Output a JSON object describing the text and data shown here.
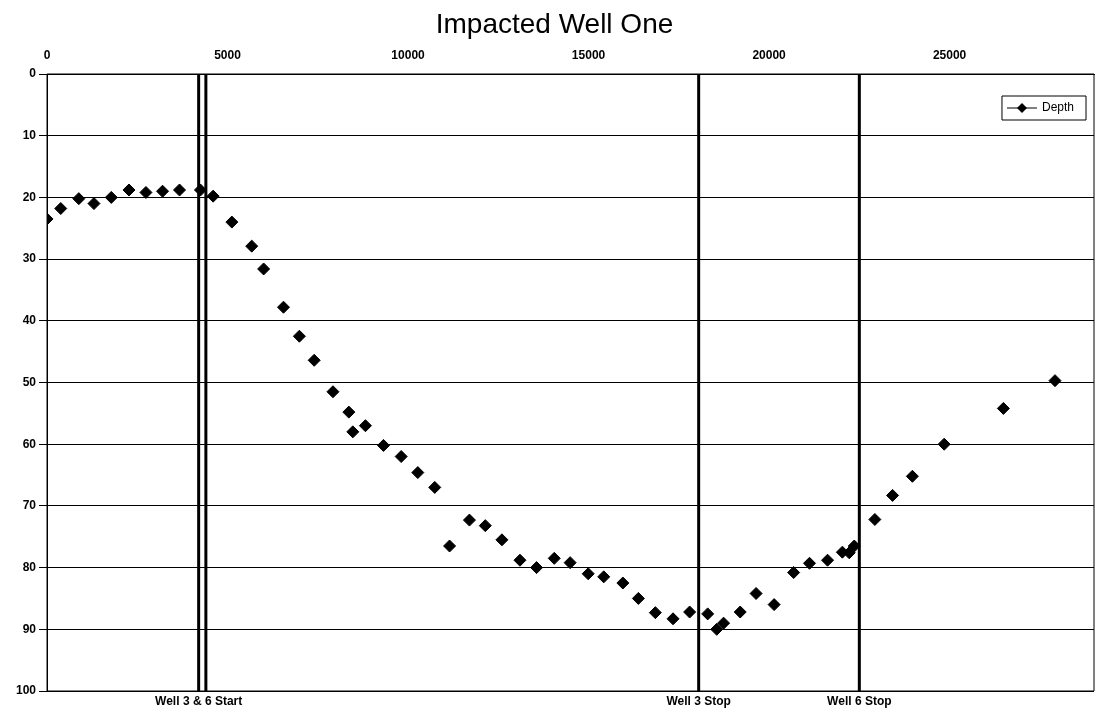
{
  "chart_data": {
    "type": "scatter",
    "title": "Impacted Well One",
    "legend": "top right",
    "marker": "diamond",
    "grid": "y",
    "xlim": [
      0,
      29000
    ],
    "xticks": [
      0,
      5000,
      10000,
      15000,
      20000,
      25000
    ],
    "ylim": [
      100,
      0
    ],
    "yticks": [
      0,
      10,
      20,
      30,
      40,
      50,
      60,
      70,
      80,
      90,
      100
    ],
    "series": [
      {
        "name": "Depth",
        "color": "#000000",
        "x": [
          0,
          380,
          880,
          1300,
          1780,
          2270,
          2740,
          3200,
          3670,
          4250,
          4600,
          5120,
          5670,
          6000,
          6550,
          6990,
          7400,
          7920,
          8360,
          8470,
          8820,
          9320,
          9810,
          10270,
          10740,
          11150,
          11700,
          12140,
          12600,
          13100,
          13560,
          14050,
          14490,
          14990,
          15420,
          15950,
          16380,
          16850,
          17340,
          17800,
          18300,
          18550,
          18740,
          19200,
          19640,
          20140,
          20680,
          21120,
          21620,
          22030,
          22220,
          22360,
          22930,
          23420,
          23970,
          24850,
          26490,
          27920
        ],
        "values": [
          23.5,
          21.8,
          20.2,
          21,
          20,
          18.8,
          19.2,
          19,
          18.8,
          18.8,
          19.8,
          24,
          27.9,
          31.6,
          37.8,
          42.5,
          46.4,
          51.5,
          54.8,
          58,
          57,
          60.2,
          62,
          64.6,
          67,
          76.5,
          72.3,
          73.2,
          75.5,
          78.8,
          80,
          78.5,
          79.2,
          81,
          81.5,
          82.5,
          85,
          87.3,
          88.3,
          87.2,
          87.5,
          90,
          89,
          87.2,
          84.2,
          86,
          80.8,
          79.3,
          78.8,
          77.5,
          77.6,
          76.5,
          72.2,
          68.3,
          65.2,
          60,
          54.2,
          49.7
        ]
      }
    ],
    "ref_lines": [
      {
        "axis": "x",
        "value": 4200,
        "label": "Well 3 & 6 Start",
        "color": "#000000"
      },
      {
        "axis": "x",
        "value": 4400,
        "label": null,
        "color": "#000000"
      },
      {
        "axis": "x",
        "value": 18050,
        "label": "Well 3 Stop",
        "color": "#000000"
      },
      {
        "axis": "x",
        "value": 22500,
        "label": "Well 6 Stop",
        "color": "#000000"
      }
    ]
  }
}
